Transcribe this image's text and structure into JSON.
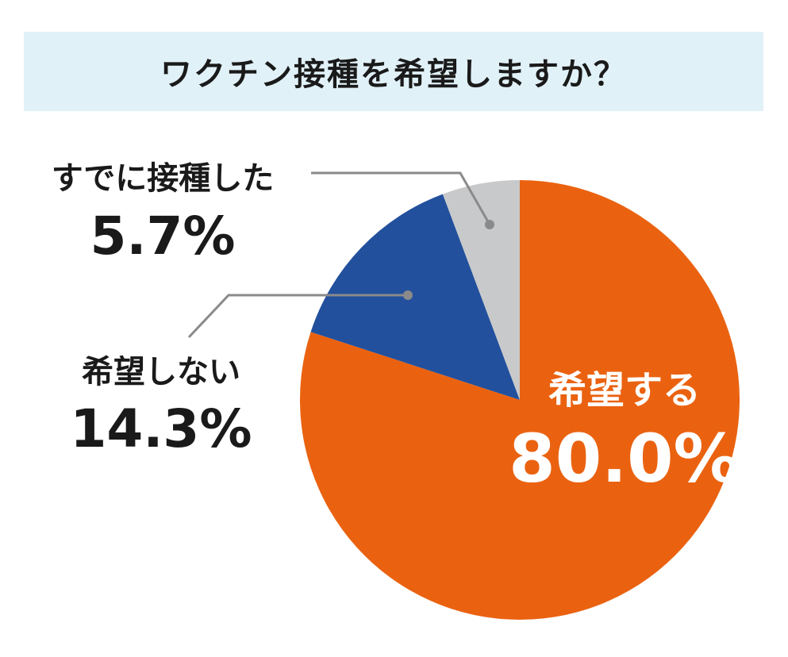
{
  "title": "ワクチン接種を希望しますか？",
  "chart_data": {
    "type": "pie",
    "title": "ワクチン接種を希望しますか？",
    "slices": [
      {
        "label": "希望する",
        "value": 80.0,
        "value_label": "80.0%",
        "color": "#ea6210"
      },
      {
        "label": "希望しない",
        "value": 14.3,
        "value_label": "14.3%",
        "color": "#22509d"
      },
      {
        "label": "すでに接種した",
        "value": 5.7,
        "value_label": "5.7%",
        "color": "#c8c9ca"
      }
    ],
    "start_angle": "12 o'clock",
    "direction": "clockwise",
    "legend": "none"
  },
  "colors": {
    "title_background": "#e1f1f8",
    "leader_line": "#8a8a8a",
    "text_dark": "#1a1a1a",
    "text_light": "#ffffff"
  }
}
